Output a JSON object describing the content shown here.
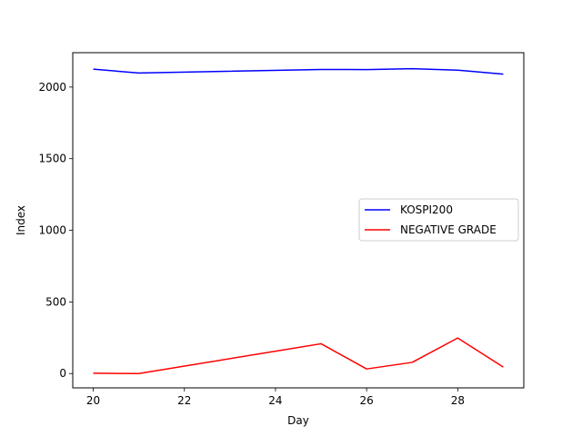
{
  "chart_data": {
    "type": "line",
    "title": "",
    "xlabel": "Day",
    "ylabel": "Index",
    "xlim": [
      19.55,
      29.45
    ],
    "ylim": [
      -100,
      2240
    ],
    "xticks": [
      20,
      22,
      24,
      26,
      28
    ],
    "yticks": [
      0,
      500,
      1000,
      1500,
      2000
    ],
    "grid": false,
    "legend_position": "center-right",
    "x": [
      20,
      21,
      22,
      23,
      24,
      25,
      26,
      27,
      28,
      29
    ],
    "series": [
      {
        "name": "KOSPI200",
        "color": "#0000ff",
        "x": [
          20,
          21,
          25,
          26,
          27,
          28,
          29
        ],
        "values": [
          2125,
          2098,
          2123,
          2122,
          2128,
          2118,
          2090
        ]
      },
      {
        "name": "NEGATIVE GRADE",
        "color": "#ff0000",
        "x": [
          20,
          21,
          25,
          26,
          27,
          28,
          29
        ],
        "values": [
          2,
          0,
          208,
          32,
          78,
          248,
          45
        ]
      }
    ]
  }
}
